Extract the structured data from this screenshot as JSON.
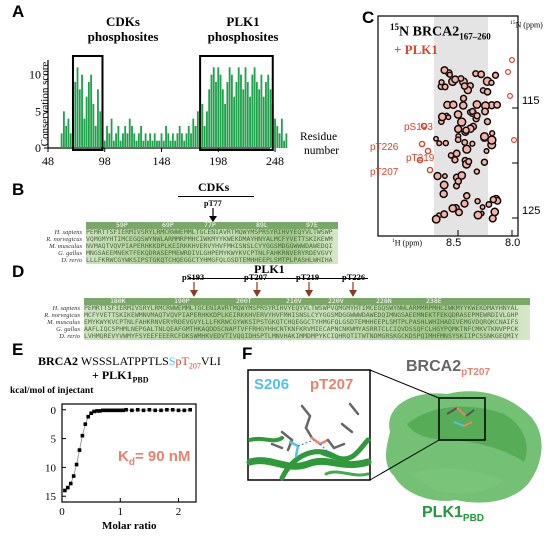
{
  "panels": {
    "A": {
      "label": "A",
      "box_left_title": [
        "CDKs",
        "phosphosites"
      ],
      "box_right_title": [
        "PLK1",
        "phosphosites"
      ],
      "ylabel": "Conservation score",
      "xlabel": [
        "Residue",
        "number"
      ],
      "xticks": [
        "48",
        "98",
        "148",
        "198",
        "248"
      ],
      "yticks": [
        "0",
        "5",
        "10"
      ]
    },
    "B": {
      "label": "B",
      "kinase": "CDKs",
      "site": "pT77",
      "species": [
        "H. sapiens",
        "R. norvegicus",
        "M. musculus",
        "G. gallus",
        "D. rerio"
      ],
      "ruler": [
        "59P",
        "69P",
        "77P",
        "89L",
        "97E"
      ]
    },
    "C": {
      "label": "C",
      "title_prefix": "15N BRCA2",
      "title_sub": "167–260",
      "title_plk": "+ PLK1",
      "top_axis": "15N (ppm)",
      "bottom_axis": "1H (ppm)",
      "yticks": [
        "115",
        "120",
        "125"
      ],
      "xticks": [
        "8.5",
        "8.0"
      ],
      "peak_labels": [
        "pS193",
        "pT226",
        "pT219",
        "pT207"
      ]
    },
    "D": {
      "label": "D",
      "kinase": "PLK1",
      "sites": [
        "pS193",
        "pT207",
        "pT219",
        "pT226"
      ],
      "species": [
        "H. sapiens",
        "R. norvegicus",
        "M. musculus",
        "G. gallus",
        "D. rerio"
      ],
      "ruler": [
        "180K",
        "190P",
        "200T",
        "210V",
        "220V",
        "228N",
        "238E"
      ]
    },
    "E": {
      "label": "E",
      "title_line1_bold": "BRCA2",
      "title_line1_seq": "WSSSLATPPTLS",
      "title_line1_s": "S",
      "title_line1_pt": "pT",
      "title_line1_pt_sub": "207",
      "title_line1_end": "VLI",
      "title_line2": "+ PLK1",
      "title_line2_sub": "PBD",
      "ylabel": "kcal/mol of injectant",
      "xlabel": "Molar ratio",
      "kd": "Kd= 90 nM",
      "xticks": [
        "0",
        "1",
        "2"
      ],
      "yticks": [
        "0",
        "5",
        "10",
        "15"
      ]
    },
    "F": {
      "label": "F",
      "s206": "S206",
      "pt207": "pT207",
      "brca2": "BRCA2",
      "brca2_sub": "pT207",
      "plk1": "PLK1",
      "plk1_sub": "PBD"
    }
  },
  "colors": {
    "green": "#1fa04a",
    "red": "#d8432f",
    "salmon": "#e8826e",
    "cyan": "#4fc3e8",
    "arrow_brown": "#8b3a1e"
  },
  "chart_data": [
    {
      "type": "bar",
      "panel": "A",
      "ylabel": "Conservation score",
      "xlabel": "Residue number",
      "xlim": [
        48,
        270
      ],
      "ylim": [
        0,
        12
      ],
      "x": [
        60,
        62,
        64,
        66,
        68,
        70,
        72,
        74,
        76,
        78,
        80,
        82,
        84,
        86,
        88,
        90,
        92,
        94,
        96,
        98,
        100,
        102,
        104,
        106,
        108,
        110,
        112,
        114,
        116,
        118,
        120,
        122,
        124,
        126,
        128,
        130,
        132,
        134,
        136,
        138,
        140,
        142,
        144,
        146,
        148,
        150,
        152,
        154,
        156,
        158,
        160,
        162,
        164,
        166,
        168,
        170,
        172,
        174,
        176,
        178,
        180,
        182,
        184,
        186,
        188,
        190,
        192,
        194,
        196,
        198,
        200,
        202,
        204,
        206,
        208,
        210,
        212,
        214,
        216,
        218,
        220,
        222,
        224,
        226,
        228,
        230,
        232,
        234,
        236,
        238,
        240,
        242,
        244,
        246,
        248,
        250,
        252,
        254,
        256,
        258
      ],
      "values": [
        2,
        5,
        3,
        4,
        2,
        6,
        9,
        11,
        8,
        10,
        4,
        7,
        9,
        10,
        6,
        3,
        8,
        5,
        2,
        1,
        3,
        2,
        4,
        1,
        2,
        3,
        1,
        2,
        3,
        2,
        4,
        3,
        2,
        1,
        2,
        3,
        1,
        2,
        1,
        2,
        1,
        2,
        1,
        1,
        2,
        1,
        3,
        2,
        1,
        2,
        1,
        2,
        3,
        2,
        1,
        2,
        3,
        2,
        4,
        3,
        5,
        4,
        6,
        3,
        5,
        8,
        10,
        11,
        9,
        11,
        10,
        8,
        6,
        9,
        11,
        10,
        7,
        9,
        11,
        10,
        8,
        11,
        9,
        7,
        10,
        11,
        9,
        8,
        10,
        7,
        9,
        10,
        8,
        6,
        4,
        3,
        2,
        4,
        1,
        2
      ]
    },
    {
      "type": "line",
      "panel": "E",
      "xlabel": "Molar ratio",
      "ylabel": "kcal/mol of injectant",
      "xlim": [
        0,
        2.3
      ],
      "ylim": [
        16,
        -1
      ],
      "x": [
        0.05,
        0.1,
        0.15,
        0.2,
        0.25,
        0.3,
        0.35,
        0.4,
        0.45,
        0.5,
        0.55,
        0.6,
        0.65,
        0.7,
        0.75,
        0.8,
        0.85,
        0.9,
        0.95,
        1.0,
        1.05,
        1.1,
        1.2,
        1.3,
        1.4,
        1.5,
        1.6,
        1.7,
        1.8,
        1.9,
        2.0,
        2.1,
        2.2
      ],
      "values": [
        14,
        13.5,
        12.8,
        11.5,
        9.5,
        7,
        4.5,
        2.5,
        1.2,
        0.6,
        0.3,
        0.2,
        0.2,
        0.1,
        0.1,
        0.1,
        0.1,
        0.1,
        0.1,
        0.1,
        0.1,
        0,
        0.1,
        0,
        0.1,
        0,
        0.1,
        0.1,
        0,
        0,
        0.1,
        0.1,
        0
      ]
    }
  ]
}
